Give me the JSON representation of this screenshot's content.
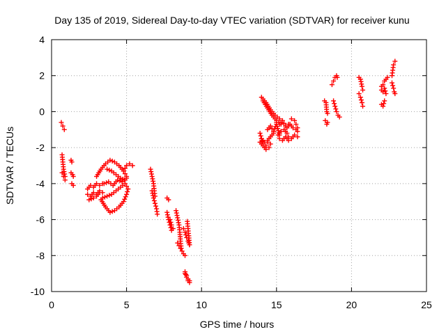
{
  "chart_data": {
    "type": "scatter",
    "title": "Day 135 of 2019, Sidereal Day-to-day VTEC variation (SDTVAR) for receiver kunu",
    "xlabel": "GPS time / hours",
    "ylabel": "SDTVAR / TECUs",
    "xlim": [
      0,
      25
    ],
    "ylim": [
      -10,
      4
    ],
    "xticks": [
      "0",
      "5",
      "10",
      "15",
      "20",
      "25"
    ],
    "xtick_values": [
      0,
      5,
      10,
      15,
      20,
      25
    ],
    "yticks": [
      "-10",
      "-8",
      "-6",
      "-4",
      "-2",
      "0",
      "2",
      "4"
    ],
    "ytick_values": [
      -10,
      -8,
      -6,
      -4,
      -2,
      0,
      2,
      4
    ],
    "grid": true,
    "marker": "+",
    "color": "#ff0000",
    "segments": [
      {
        "name": "arc-0.7",
        "x": [
          0.65,
          0.75,
          0.85
        ],
        "y": [
          -0.6,
          -0.8,
          -1.0
        ]
      },
      {
        "name": "arc-0.75",
        "x": [
          0.7,
          0.75,
          0.8,
          0.9
        ],
        "y": [
          -2.4,
          -2.8,
          -3.2,
          -3.6
        ]
      },
      {
        "name": "arc-0.8",
        "x": [
          0.7,
          0.8,
          0.9
        ],
        "y": [
          -3.4,
          -3.6,
          -3.8
        ]
      },
      {
        "name": "arc-1.3",
        "x": [
          1.3,
          1.35
        ],
        "y": [
          -2.7,
          -2.8
        ]
      },
      {
        "name": "arc-1.35",
        "x": [
          1.3,
          1.4,
          1.45
        ],
        "y": [
          -3.4,
          -3.5,
          -3.6
        ]
      },
      {
        "name": "arc-1.4",
        "x": [
          1.35,
          1.45
        ],
        "y": [
          -4.0,
          -4.1
        ]
      },
      {
        "name": "arc-2.5",
        "x": [
          2.4,
          2.6,
          2.8,
          3.0,
          3.2,
          3.4
        ],
        "y": [
          -4.3,
          -4.1,
          -4.2,
          -4.0,
          -4.1,
          -4.0
        ]
      },
      {
        "name": "arc-2.6",
        "x": [
          2.4,
          2.6,
          2.8,
          3.0,
          3.2,
          3.4
        ],
        "y": [
          -4.6,
          -4.7,
          -4.5,
          -4.6,
          -4.4,
          -4.5
        ]
      },
      {
        "name": "arc-3.0",
        "x": [
          2.5,
          2.8,
          3.0,
          3.2
        ],
        "y": [
          -4.9,
          -4.8,
          -4.7,
          -4.5
        ]
      },
      {
        "name": "loop-1",
        "x": [
          3.3,
          3.6,
          3.9,
          4.2,
          4.5,
          4.8,
          5.0,
          5.1,
          4.9,
          4.6,
          4.3,
          4.0,
          3.7,
          3.4
        ],
        "y": [
          -4.9,
          -5.3,
          -5.6,
          -5.5,
          -5.3,
          -5.0,
          -4.6,
          -4.3,
          -4.0,
          -4.2,
          -4.4,
          -4.6,
          -4.7,
          -4.8
        ]
      },
      {
        "name": "loop-2",
        "x": [
          3.0,
          3.3,
          3.6,
          3.9,
          4.2,
          4.5,
          4.8,
          5.0,
          4.9,
          4.6,
          4.3,
          4.0,
          3.7
        ],
        "y": [
          -3.6,
          -3.2,
          -2.9,
          -2.7,
          -2.8,
          -3.0,
          -3.3,
          -3.6,
          -3.8,
          -3.7,
          -3.5,
          -3.3,
          -3.2
        ]
      },
      {
        "name": "arc-4.0",
        "x": [
          3.5,
          3.8,
          4.1,
          4.4,
          4.7,
          5.0
        ],
        "y": [
          -4.0,
          -3.9,
          -4.1,
          -3.8,
          -3.9,
          -3.7
        ]
      },
      {
        "name": "arc-5.1",
        "x": [
          4.8,
          5.0,
          5.2,
          5.4
        ],
        "y": [
          -3.3,
          -3.0,
          -2.9,
          -3.0
        ]
      },
      {
        "name": "arc-6.7",
        "x": [
          6.6,
          6.7,
          6.8,
          6.85,
          6.9
        ],
        "y": [
          -3.2,
          -3.6,
          -4.0,
          -4.4,
          -4.7
        ]
      },
      {
        "name": "arc-6.8",
        "x": [
          6.7,
          6.8,
          6.9,
          7.0,
          7.05
        ],
        "y": [
          -4.4,
          -4.8,
          -5.1,
          -5.4,
          -5.7
        ]
      },
      {
        "name": "arc-7.8",
        "x": [
          7.7,
          7.8
        ],
        "y": [
          -4.8,
          -4.9
        ]
      },
      {
        "name": "arc-7.9",
        "x": [
          7.7,
          7.8,
          7.9,
          8.0
        ],
        "y": [
          -5.6,
          -6.0,
          -6.3,
          -6.6
        ]
      },
      {
        "name": "arc-8.0",
        "x": [
          7.9,
          8.0,
          8.1
        ],
        "y": [
          -6.0,
          -6.3,
          -6.5
        ]
      },
      {
        "name": "arc-8.5",
        "x": [
          8.3,
          8.4,
          8.5,
          8.55,
          8.6,
          8.65
        ],
        "y": [
          -5.5,
          -5.9,
          -6.3,
          -6.7,
          -7.2,
          -7.6
        ]
      },
      {
        "name": "arc-8.7",
        "x": [
          8.4,
          8.6,
          8.8,
          8.9
        ],
        "y": [
          -7.3,
          -7.6,
          -7.9,
          -8.0
        ]
      },
      {
        "name": "arc-9.0",
        "x": [
          8.8,
          8.9,
          9.0,
          9.1,
          9.15,
          9.2
        ],
        "y": [
          -6.5,
          -6.7,
          -7.0,
          -7.2,
          -7.3,
          -7.4
        ]
      },
      {
        "name": "arc-9.2",
        "x": [
          9.05,
          9.1,
          9.15,
          9.2
        ],
        "y": [
          -6.1,
          -6.5,
          -6.9,
          -7.4
        ]
      },
      {
        "name": "arc-9.1",
        "x": [
          8.9,
          9.0,
          9.1,
          9.2
        ],
        "y": [
          -8.9,
          -9.2,
          -9.4,
          -9.5
        ]
      },
      {
        "name": "arc-9.15",
        "x": [
          8.9,
          9.0,
          9.1,
          9.2
        ],
        "y": [
          -9.0,
          -9.1,
          -9.3,
          -9.4
        ]
      },
      {
        "name": "arc-13.9",
        "x": [
          13.9,
          14.0,
          14.1,
          14.2,
          14.3,
          14.4
        ],
        "y": [
          -1.2,
          -1.5,
          -1.8,
          -2.0,
          -1.9,
          -1.7
        ]
      },
      {
        "name": "arc-14.0",
        "x": [
          13.9,
          14.1,
          14.3,
          14.5,
          14.6
        ],
        "y": [
          -1.7,
          -1.9,
          -2.1,
          -2.0,
          -1.8
        ]
      },
      {
        "name": "arc-14.2",
        "x": [
          14.0,
          14.2,
          14.4,
          14.6,
          14.8
        ],
        "y": [
          -1.5,
          -1.7,
          -1.6,
          -1.4,
          -1.2
        ]
      },
      {
        "name": "arc-14.5",
        "x": [
          14.0,
          14.3,
          14.6,
          14.9,
          15.2
        ],
        "y": [
          0.8,
          0.5,
          0.1,
          -0.2,
          -0.4
        ]
      },
      {
        "name": "arc-14.6",
        "x": [
          14.1,
          14.4,
          14.7,
          15.0,
          15.3
        ],
        "y": [
          0.6,
          0.2,
          -0.2,
          -0.5,
          -0.7
        ]
      },
      {
        "name": "arc-14.8",
        "x": [
          14.4,
          14.6,
          14.8,
          15.0,
          15.2
        ],
        "y": [
          -1.0,
          -0.8,
          -1.1,
          -0.7,
          -1.3
        ]
      },
      {
        "name": "arc-15.3",
        "x": [
          15.0,
          15.2,
          15.4,
          15.6,
          15.8
        ],
        "y": [
          -0.6,
          -0.7,
          -0.5,
          -0.8,
          -0.7
        ]
      },
      {
        "name": "arc-15.4",
        "x": [
          15.1,
          15.3,
          15.5,
          15.7
        ],
        "y": [
          -1.3,
          -1.1,
          -1.0,
          -1.2
        ]
      },
      {
        "name": "arc-15.6",
        "x": [
          15.2,
          15.4,
          15.6,
          15.8
        ],
        "y": [
          -1.5,
          -1.6,
          -1.4,
          -1.6
        ]
      },
      {
        "name": "arc-16.0",
        "x": [
          15.7,
          15.9,
          16.1,
          16.3,
          16.4
        ],
        "y": [
          -0.9,
          -0.7,
          -0.9,
          -1.0,
          -1.1
        ]
      },
      {
        "name": "arc-16.1",
        "x": [
          15.8,
          16.0,
          16.2,
          16.4
        ],
        "y": [
          -1.4,
          -1.5,
          -1.3,
          -1.4
        ]
      },
      {
        "name": "arc-16.3",
        "x": [
          16.0,
          16.2,
          16.3,
          16.4
        ],
        "y": [
          -0.4,
          -0.5,
          -0.7,
          -0.9
        ]
      },
      {
        "name": "arc-18.3",
        "x": [
          18.2,
          18.3,
          18.35,
          18.4
        ],
        "y": [
          0.6,
          0.5,
          0.0,
          -0.1
        ]
      },
      {
        "name": "arc-18.35",
        "x": [
          18.25,
          18.35,
          18.4
        ],
        "y": [
          -0.5,
          -0.7,
          -0.6
        ]
      },
      {
        "name": "arc-18.9",
        "x": [
          18.7,
          18.8,
          18.9,
          19.0,
          19.05
        ],
        "y": [
          1.5,
          1.7,
          1.9,
          2.0,
          1.9
        ]
      },
      {
        "name": "arc-19.0",
        "x": [
          18.8,
          18.9,
          19.0,
          19.1,
          19.2
        ],
        "y": [
          0.6,
          0.3,
          0.0,
          -0.2,
          -0.3
        ]
      },
      {
        "name": "arc-20.6",
        "x": [
          20.5,
          20.6,
          20.7,
          20.75
        ],
        "y": [
          1.9,
          1.8,
          1.4,
          1.2
        ]
      },
      {
        "name": "arc-20.65",
        "x": [
          20.5,
          20.6,
          20.7,
          20.75
        ],
        "y": [
          1.0,
          0.8,
          0.5,
          0.3
        ]
      },
      {
        "name": "arc-22.2",
        "x": [
          22.0,
          22.1,
          22.2,
          22.3,
          22.4
        ],
        "y": [
          1.4,
          1.5,
          1.7,
          1.8,
          1.9
        ]
      },
      {
        "name": "arc-22.3",
        "x": [
          22.0,
          22.1,
          22.2,
          22.3
        ],
        "y": [
          1.2,
          1.1,
          1.3,
          1.0
        ]
      },
      {
        "name": "arc-22.25",
        "x": [
          22.0,
          22.1,
          22.2
        ],
        "y": [
          0.4,
          0.3,
          0.6
        ]
      },
      {
        "name": "arc-22.8",
        "x": [
          22.7,
          22.75,
          22.8,
          22.9
        ],
        "y": [
          2.0,
          2.3,
          2.6,
          2.8
        ]
      },
      {
        "name": "arc-22.85",
        "x": [
          22.7,
          22.8,
          22.85,
          22.9
        ],
        "y": [
          1.6,
          1.3,
          1.1,
          1.0
        ]
      }
    ]
  }
}
